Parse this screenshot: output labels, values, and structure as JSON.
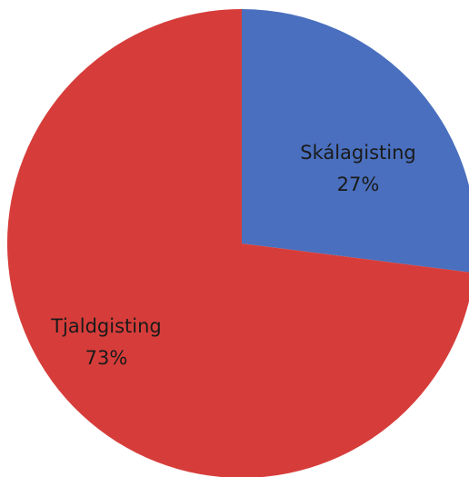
{
  "chart_data": {
    "type": "pie",
    "title": "",
    "slices": [
      {
        "label": "Skálagisting",
        "value": 27,
        "value_label": "27%",
        "color": "#4a6fbe"
      },
      {
        "label": "Tjaldgisting",
        "value": 73,
        "value_label": "73%",
        "color": "#d63d3a"
      }
    ],
    "start_angle": "12 o'clock",
    "direction": "clockwise",
    "legend": "none"
  }
}
